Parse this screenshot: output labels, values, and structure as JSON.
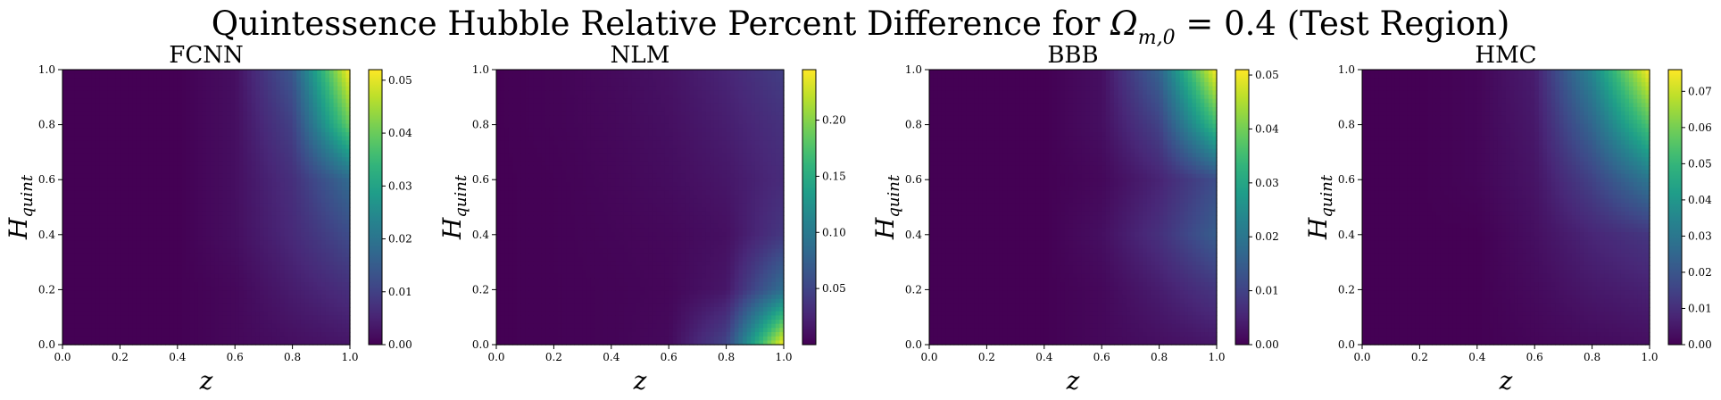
{
  "figure": {
    "title_main": "Quintessence Hubble Relative Percent Difference for ",
    "title_symbol": "Ω",
    "title_sub": "m,0",
    "title_tail": " = 0.4 (Test Region)"
  },
  "chart_data": [
    {
      "type": "heatmap",
      "title": "FCNN",
      "xlabel": "z",
      "ylabel": "H",
      "ylabel_sub": "quint",
      "xlim": [
        0.0,
        1.0
      ],
      "ylim": [
        0.0,
        1.0
      ],
      "xticks": [
        "0.0",
        "0.2",
        "0.4",
        "0.6",
        "0.8",
        "1.0"
      ],
      "yticks": [
        "0.0",
        "0.2",
        "0.4",
        "0.6",
        "0.8",
        "1.0"
      ],
      "colormap": "viridis",
      "colorbar_range": [
        0.0,
        0.052
      ],
      "colorbar_ticks": [
        "0.00",
        "0.01",
        "0.02",
        "0.03",
        "0.04",
        "0.05"
      ],
      "grid": false,
      "grid_x": [
        0.0,
        0.2,
        0.4,
        0.6,
        0.8,
        1.0
      ],
      "grid_y": [
        1.0,
        0.8,
        0.6,
        0.4,
        0.2,
        0.0
      ],
      "values": [
        [
          0.0,
          0.0,
          0.0,
          0.002,
          0.014,
          0.052
        ],
        [
          0.0,
          0.0,
          0.0,
          0.002,
          0.01,
          0.04
        ],
        [
          0.0,
          0.0,
          0.0,
          0.002,
          0.007,
          0.018
        ],
        [
          0.0,
          0.0,
          0.0,
          0.002,
          0.006,
          0.012
        ],
        [
          0.0,
          0.0,
          0.0,
          0.001,
          0.004,
          0.007
        ],
        [
          0.0,
          0.0,
          0.0,
          0.001,
          0.002,
          0.003
        ]
      ]
    },
    {
      "type": "heatmap",
      "title": "NLM",
      "xlabel": "z",
      "ylabel": "H",
      "ylabel_sub": "quint",
      "xlim": [
        0.0,
        1.0
      ],
      "ylim": [
        0.0,
        1.0
      ],
      "xticks": [
        "0.0",
        "0.2",
        "0.4",
        "0.6",
        "0.8",
        "1.0"
      ],
      "yticks": [
        "0.0",
        "0.2",
        "0.4",
        "0.6",
        "0.8",
        "1.0"
      ],
      "colormap": "viridis",
      "colorbar_range": [
        0.0,
        0.245
      ],
      "colorbar_ticks": [
        "0.05",
        "0.10",
        "0.15",
        "0.20"
      ],
      "grid": false,
      "grid_x": [
        0.0,
        0.2,
        0.4,
        0.6,
        0.8,
        1.0
      ],
      "grid_y": [
        1.0,
        0.8,
        0.6,
        0.4,
        0.2,
        0.0
      ],
      "values": [
        [
          0.0,
          0.002,
          0.006,
          0.012,
          0.025,
          0.045
        ],
        [
          0.0,
          0.002,
          0.005,
          0.01,
          0.02,
          0.035
        ],
        [
          0.0,
          0.001,
          0.004,
          0.008,
          0.015,
          0.03
        ],
        [
          0.0,
          0.001,
          0.003,
          0.005,
          0.01,
          0.04
        ],
        [
          0.0,
          0.001,
          0.002,
          0.004,
          0.015,
          0.09
        ],
        [
          0.0,
          0.001,
          0.002,
          0.006,
          0.05,
          0.245
        ]
      ]
    },
    {
      "type": "heatmap",
      "title": "BBB",
      "xlabel": "z",
      "ylabel": "H",
      "ylabel_sub": "quint",
      "xlim": [
        0.0,
        1.0
      ],
      "ylim": [
        0.0,
        1.0
      ],
      "xticks": [
        "0.0",
        "0.2",
        "0.4",
        "0.6",
        "0.8",
        "1.0"
      ],
      "yticks": [
        "0.0",
        "0.2",
        "0.4",
        "0.6",
        "0.8",
        "1.0"
      ],
      "colormap": "viridis",
      "colorbar_range": [
        0.0,
        0.051
      ],
      "colorbar_ticks": [
        "0.00",
        "0.01",
        "0.02",
        "0.03",
        "0.04",
        "0.05"
      ],
      "grid": false,
      "grid_x": [
        0.0,
        0.2,
        0.4,
        0.6,
        0.8,
        1.0
      ],
      "grid_y": [
        1.0,
        0.8,
        0.6,
        0.4,
        0.2,
        0.0
      ],
      "values": [
        [
          0.0,
          0.0,
          0.0,
          0.002,
          0.016,
          0.051
        ],
        [
          0.0,
          0.0,
          0.0,
          0.002,
          0.01,
          0.035
        ],
        [
          0.0,
          0.0,
          0.0,
          0.001,
          0.005,
          0.012
        ],
        [
          0.0,
          0.0,
          0.0,
          0.002,
          0.007,
          0.015
        ],
        [
          0.0,
          0.0,
          0.0,
          0.001,
          0.004,
          0.008
        ],
        [
          0.0,
          0.0,
          0.0,
          0.001,
          0.002,
          0.003
        ]
      ]
    },
    {
      "type": "heatmap",
      "title": "HMC",
      "xlabel": "z",
      "ylabel": "H",
      "ylabel_sub": "quint",
      "xlim": [
        0.0,
        1.0
      ],
      "ylim": [
        0.0,
        1.0
      ],
      "xticks": [
        "0.0",
        "0.2",
        "0.4",
        "0.6",
        "0.8",
        "1.0"
      ],
      "yticks": [
        "0.0",
        "0.2",
        "0.4",
        "0.6",
        "0.8",
        "1.0"
      ],
      "colormap": "viridis",
      "colorbar_range": [
        0.0,
        0.076
      ],
      "colorbar_ticks": [
        "0.00",
        "0.01",
        "0.02",
        "0.03",
        "0.04",
        "0.05",
        "0.06",
        "0.07"
      ],
      "grid": false,
      "grid_x": [
        0.0,
        0.2,
        0.4,
        0.6,
        0.8,
        1.0
      ],
      "grid_y": [
        1.0,
        0.8,
        0.6,
        0.4,
        0.2,
        0.0
      ],
      "values": [
        [
          0.0,
          0.0,
          0.001,
          0.006,
          0.035,
          0.076
        ],
        [
          0.0,
          0.0,
          0.001,
          0.005,
          0.025,
          0.055
        ],
        [
          0.0,
          0.0,
          0.001,
          0.004,
          0.015,
          0.03
        ],
        [
          0.0,
          0.0,
          0.0,
          0.003,
          0.008,
          0.012
        ],
        [
          0.0,
          0.0,
          0.0,
          0.002,
          0.005,
          0.007
        ],
        [
          0.0,
          0.0,
          0.0,
          0.001,
          0.002,
          0.003
        ]
      ]
    }
  ]
}
